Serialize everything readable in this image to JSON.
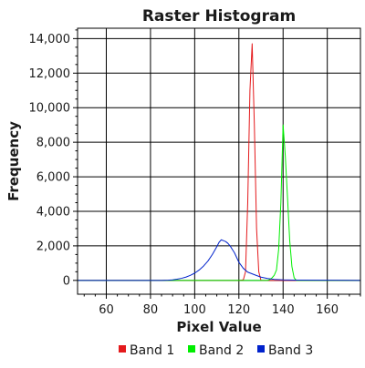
{
  "chart_data": {
    "type": "line",
    "title": "Raster Histogram",
    "xlabel": "Pixel Value",
    "ylabel": "Frequency",
    "xlim": [
      47,
      175
    ],
    "ylim": [
      -800,
      14600
    ],
    "x_ticks": [
      60,
      80,
      100,
      120,
      140,
      160
    ],
    "x_tick_labels": [
      "60",
      "80",
      "100",
      "120",
      "140",
      "160"
    ],
    "y_ticks": [
      0,
      2000,
      4000,
      6000,
      8000,
      10000,
      12000,
      14000
    ],
    "y_tick_labels": [
      "0",
      "2,000",
      "4,000",
      "6,000",
      "8,000",
      "10,000",
      "12,000",
      "14,000"
    ],
    "grid": true,
    "legend_position": "bottom",
    "series": [
      {
        "name": "Band 1",
        "color": "#e41a1c",
        "x": [
          47,
          120,
          122,
          123,
          124,
          125,
          126,
          127,
          128,
          129,
          130,
          132,
          175
        ],
        "y": [
          0,
          0,
          30,
          500,
          4500,
          11000,
          13700,
          9000,
          3000,
          500,
          0,
          0,
          0
        ]
      },
      {
        "name": "Band 2",
        "color": "#00ee00",
        "x": [
          47,
          133,
          134,
          135,
          136,
          137,
          138,
          139,
          140,
          141,
          142,
          143,
          144,
          145,
          146,
          175
        ],
        "y": [
          0,
          0,
          50,
          150,
          300,
          600,
          1800,
          4500,
          9000,
          7200,
          4800,
          2300,
          800,
          150,
          0,
          0
        ]
      },
      {
        "name": "Band 3",
        "color": "#0022cc",
        "x": [
          47,
          85,
          88,
          90,
          92,
          94,
          96,
          98,
          100,
          102,
          104,
          106,
          108,
          110,
          111,
          112,
          113,
          114,
          115,
          116,
          118,
          120,
          122,
          124,
          126,
          128,
          130,
          133,
          136,
          140,
          145,
          175
        ],
        "y": [
          0,
          0,
          10,
          30,
          70,
          120,
          190,
          290,
          420,
          600,
          830,
          1120,
          1500,
          1950,
          2200,
          2350,
          2300,
          2250,
          2150,
          2000,
          1600,
          1050,
          700,
          480,
          380,
          280,
          190,
          110,
          60,
          30,
          15,
          0
        ]
      }
    ]
  }
}
